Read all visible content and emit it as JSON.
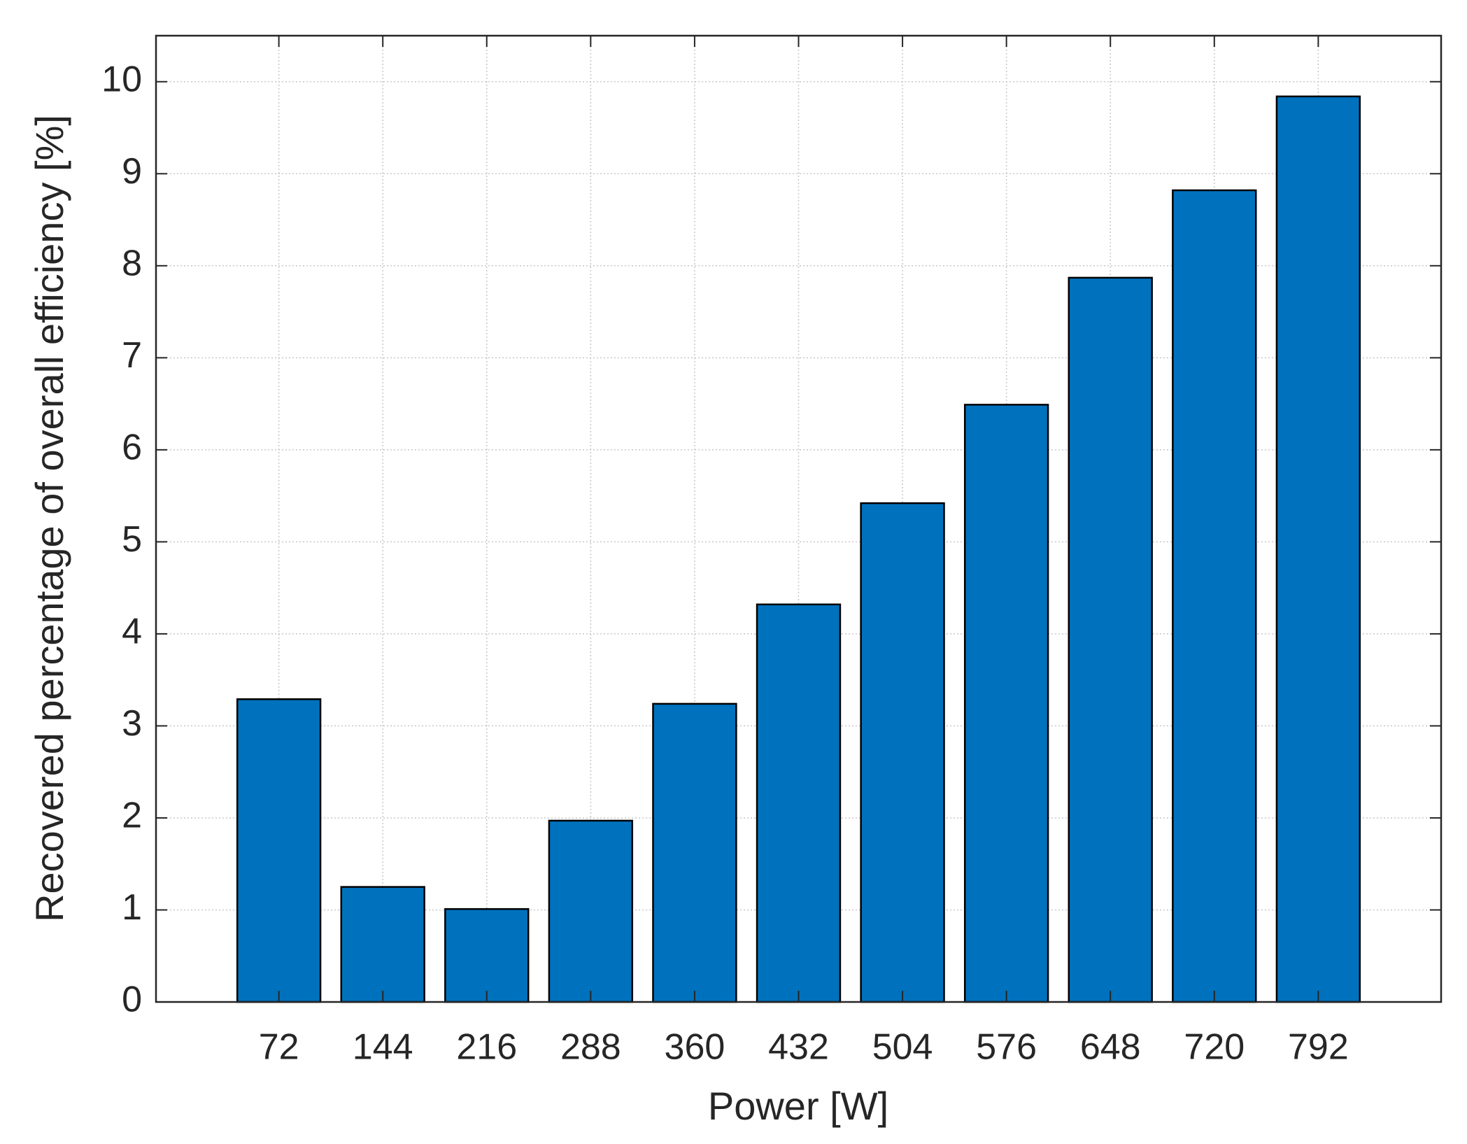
{
  "chart_data": {
    "type": "bar",
    "x_label": "Power [W]",
    "y_label": "Recovered percentage of overall efficiency [%]",
    "categories": [
      "72",
      "144",
      "216",
      "288",
      "360",
      "432",
      "504",
      "576",
      "648",
      "720",
      "792"
    ],
    "values": [
      3.29,
      1.25,
      1.01,
      1.97,
      3.24,
      4.32,
      5.42,
      6.49,
      7.87,
      8.82,
      9.84
    ],
    "color": "#0072bd",
    "ylim": [
      0,
      10.5
    ],
    "yticks": [
      0,
      1,
      2,
      3,
      4,
      5,
      6,
      7,
      8,
      9,
      10
    ],
    "grid": true
  }
}
